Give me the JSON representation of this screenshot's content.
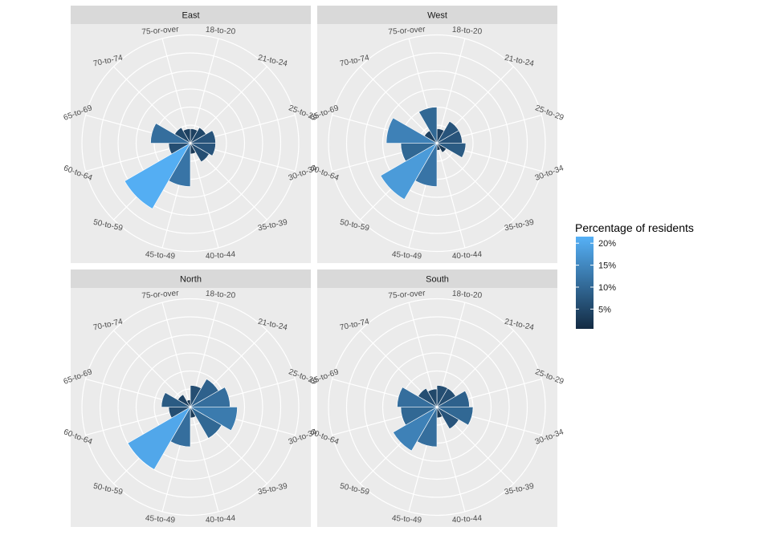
{
  "chart_data": {
    "type": "bar",
    "coord": "polar",
    "title": "",
    "xlabel": "",
    "ylabel": "",
    "grid": true,
    "legend_placement": "right",
    "legend": {
      "title": "Percentage of residents",
      "breaks": [
        5,
        10,
        15,
        20
      ],
      "labels": [
        "5%",
        "10%",
        "15%",
        "20%"
      ],
      "low_color": "#132B43",
      "high_color": "#56B1F7",
      "limits": [
        0.5,
        21.5
      ]
    },
    "rlim": [
      0,
      30
    ],
    "r_gridlines": [
      5,
      10,
      15,
      20,
      25,
      30
    ],
    "panel_background": "#EBEBEB",
    "strip_background": "#D9D9D9",
    "categories": [
      "18-to-20",
      "21-to-24",
      "25-to-29",
      "30-to-34",
      "35-to-39",
      "40-to-44",
      "45-to-49",
      "50-to-59",
      "60-to-64",
      "65-to-69",
      "70-to-74",
      "75-or-over"
    ],
    "panels": [
      {
        "name": "East",
        "values": [
          4,
          5,
          7,
          7,
          6,
          3,
          12,
          21,
          6,
          11,
          5,
          4
        ]
      },
      {
        "name": "West",
        "values": [
          4,
          7,
          7,
          8,
          3,
          2,
          12,
          18,
          10,
          14,
          4,
          10
        ]
      },
      {
        "name": "North",
        "values": [
          6,
          9,
          11,
          13,
          10,
          3,
          11,
          20,
          6,
          8,
          4,
          2
        ]
      },
      {
        "name": "South",
        "values": [
          6,
          6,
          9,
          10,
          7,
          3,
          11,
          14,
          10,
          11,
          6,
          5
        ]
      }
    ]
  }
}
